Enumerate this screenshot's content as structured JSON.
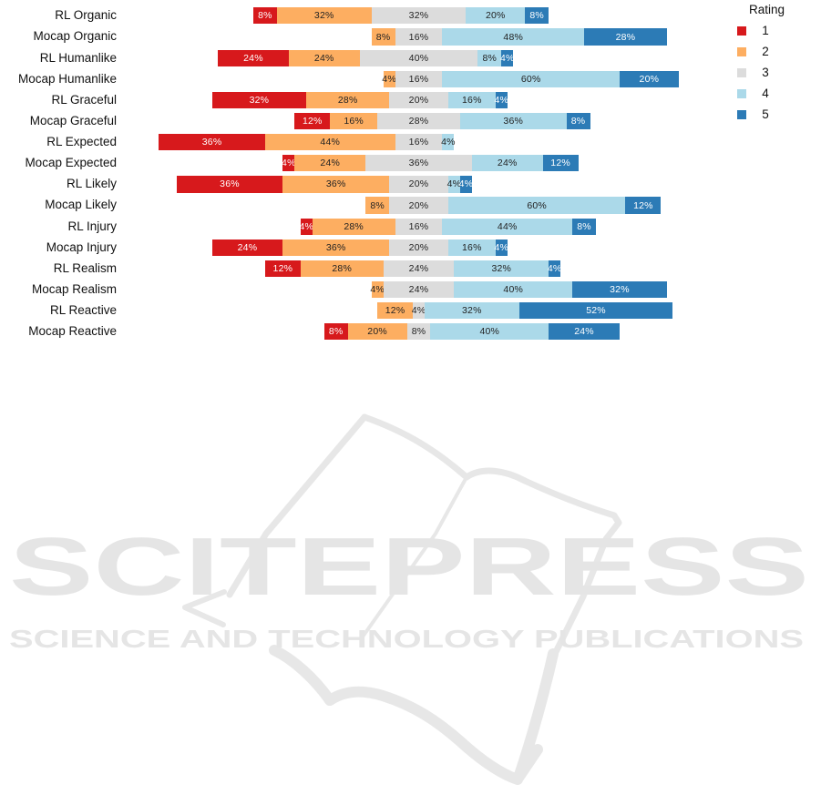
{
  "chart_data": {
    "type": "bar",
    "subtype": "diverging-stacked-likert",
    "orientation": "horizontal",
    "title": "",
    "value_suffix": "%",
    "show_value_labels": true,
    "grid": false,
    "axes_hidden": true,
    "align": "centered-on-neutral-category",
    "neutral_series": "3",
    "legend_position": "top-right",
    "categories": [
      "RL Organic",
      "Mocap Organic",
      "RL Humanlike",
      "Mocap Humanlike",
      "RL Graceful",
      "Mocap Graceful",
      "RL Expected",
      "Mocap Expected",
      "RL Likely",
      "Mocap Likely",
      "RL Injury",
      "Mocap Injury",
      "RL Realism",
      "Mocap Realism",
      "RL Reactive",
      "Mocap Reactive"
    ],
    "series": [
      {
        "name": "1",
        "color": "#d7191c",
        "text_color": "#ffffff",
        "values": [
          8,
          0,
          24,
          0,
          32,
          12,
          36,
          4,
          36,
          0,
          4,
          24,
          12,
          0,
          0,
          8
        ]
      },
      {
        "name": "2",
        "color": "#fdae61",
        "text_color": "#222222",
        "values": [
          32,
          8,
          24,
          4,
          28,
          16,
          44,
          24,
          36,
          8,
          28,
          36,
          28,
          4,
          12,
          20
        ]
      },
      {
        "name": "3",
        "color": "#dcdcdc",
        "text_color": "#222222",
        "values": [
          32,
          16,
          40,
          16,
          20,
          28,
          16,
          36,
          20,
          20,
          16,
          20,
          24,
          24,
          4,
          8
        ]
      },
      {
        "name": "4",
        "color": "#abd9e9",
        "text_color": "#222222",
        "values": [
          20,
          48,
          8,
          60,
          16,
          36,
          4,
          24,
          4,
          60,
          44,
          16,
          32,
          40,
          32,
          40
        ]
      },
      {
        "name": "5",
        "color": "#2c7bb6",
        "text_color": "#ffffff",
        "values": [
          8,
          28,
          4,
          20,
          4,
          8,
          0,
          12,
          4,
          12,
          8,
          4,
          4,
          32,
          52,
          24
        ]
      }
    ]
  },
  "legend": {
    "title": "Rating",
    "items": [
      {
        "label": "1",
        "color": "#d7191c"
      },
      {
        "label": "2",
        "color": "#fdae61"
      },
      {
        "label": "3",
        "color": "#dcdcdc"
      },
      {
        "label": "4",
        "color": "#abd9e9"
      },
      {
        "label": "5",
        "color": "#2c7bb6"
      }
    ]
  },
  "watermark": {
    "title": "SCITEPRESS",
    "subtitle": "SCIENCE AND TECHNOLOGY PUBLICATIONS",
    "color": "#e5e5e5"
  }
}
